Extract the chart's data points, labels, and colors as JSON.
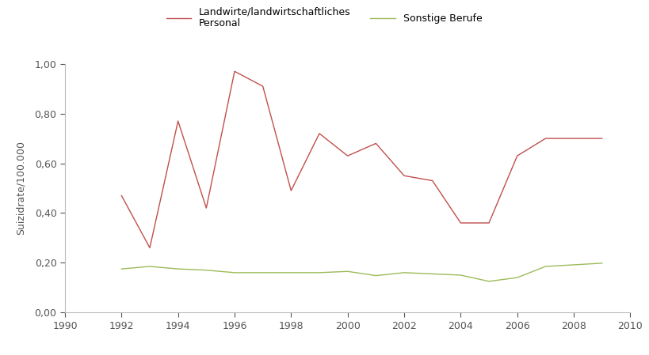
{
  "farmers_years": [
    1992,
    1993,
    1994,
    1995,
    1996,
    1997,
    1998,
    1999,
    2000,
    2001,
    2002,
    2003,
    2004,
    2005,
    2006,
    2007,
    2009
  ],
  "farmers_values": [
    0.47,
    0.26,
    0.77,
    0.42,
    0.97,
    0.91,
    0.49,
    0.72,
    0.63,
    0.68,
    0.55,
    0.53,
    0.36,
    0.36,
    0.63,
    0.7,
    0.7
  ],
  "others_years": [
    1992,
    1993,
    1994,
    1995,
    1996,
    1997,
    1998,
    1999,
    2000,
    2001,
    2002,
    2003,
    2004,
    2005,
    2006,
    2007,
    2009
  ],
  "others_values": [
    0.175,
    0.185,
    0.175,
    0.17,
    0.16,
    0.16,
    0.16,
    0.16,
    0.165,
    0.148,
    0.16,
    0.155,
    0.15,
    0.125,
    0.14,
    0.185,
    0.198
  ],
  "farmers_color": "#c0504d",
  "others_color": "#9bbb59",
  "ylabel": "Suizidrate/100.000",
  "legend_farmers": "Landwirte/landwirtschaftliches\nPersonal",
  "legend_others": "Sonstige Berufe",
  "xlim": [
    1990,
    2010
  ],
  "ylim": [
    0.0,
    1.0
  ],
  "xticks": [
    1990,
    1992,
    1994,
    1996,
    1998,
    2000,
    2002,
    2004,
    2006,
    2008,
    2010
  ],
  "yticks": [
    0.0,
    0.2,
    0.4,
    0.6,
    0.8,
    1.0
  ],
  "background_color": "#ffffff",
  "line_width": 1.0
}
